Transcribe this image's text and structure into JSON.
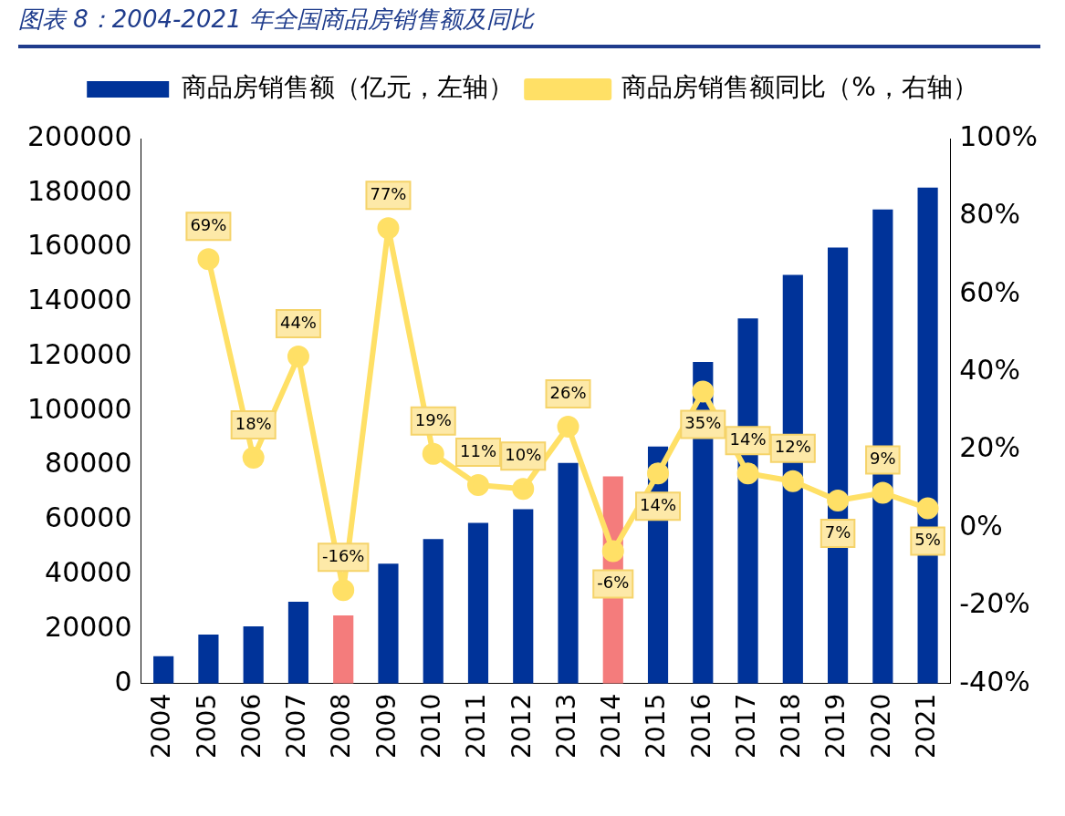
{
  "chart_data": {
    "type": "bar",
    "title": "图表 8：2004-2021 年全国商品房销售额及同比",
    "categories": [
      "2004",
      "2005",
      "2006",
      "2007",
      "2008",
      "2009",
      "2010",
      "2011",
      "2012",
      "2013",
      "2014",
      "2015",
      "2016",
      "2017",
      "2018",
      "2019",
      "2020",
      "2021"
    ],
    "series": [
      {
        "name": "商品房销售额（亿元，左轴）",
        "type": "bar",
        "color": "#003399",
        "colors": [
          "#003399",
          "#003399",
          "#003399",
          "#003399",
          "#f47c7c",
          "#003399",
          "#003399",
          "#003399",
          "#003399",
          "#003399",
          "#f47c7c",
          "#003399",
          "#003399",
          "#003399",
          "#003399",
          "#003399",
          "#003399",
          "#003399"
        ],
        "values": [
          10000,
          18000,
          21000,
          30000,
          25000,
          44000,
          53000,
          59000,
          64000,
          81000,
          76000,
          87000,
          118000,
          134000,
          150000,
          160000,
          174000,
          182000
        ]
      },
      {
        "name": "商品房销售额同比（%，右轴）",
        "type": "line",
        "axis": "y2",
        "color": "#ffe066",
        "values": [
          null,
          69,
          18,
          44,
          -16,
          77,
          19,
          11,
          10,
          26,
          -6,
          14,
          35,
          14,
          12,
          7,
          9,
          5
        ],
        "value_labels": [
          null,
          "69%",
          "18%",
          "44%",
          "-16%",
          "77%",
          "19%",
          "11%",
          "10%",
          "26%",
          "-6%",
          "14%",
          "35%",
          "14%",
          "12%",
          "7%",
          "9%",
          "5%"
        ]
      }
    ],
    "ylim": [
      0,
      200000
    ],
    "yticks": [
      0,
      20000,
      40000,
      60000,
      80000,
      100000,
      120000,
      140000,
      160000,
      180000,
      200000
    ],
    "y2lim": [
      -40,
      100
    ],
    "y2ticks": [
      {
        "value": -40,
        "label": "-40%"
      },
      {
        "value": -20,
        "label": "-20%"
      },
      {
        "value": 0,
        "label": "0%"
      },
      {
        "value": 20,
        "label": "20%"
      },
      {
        "value": 40,
        "label": "40%"
      },
      {
        "value": 60,
        "label": "60%"
      },
      {
        "value": 80,
        "label": "80%"
      },
      {
        "value": 100,
        "label": "100%"
      }
    ],
    "grid": false,
    "legend": "top",
    "marker": "circle",
    "line_style": "solid"
  }
}
